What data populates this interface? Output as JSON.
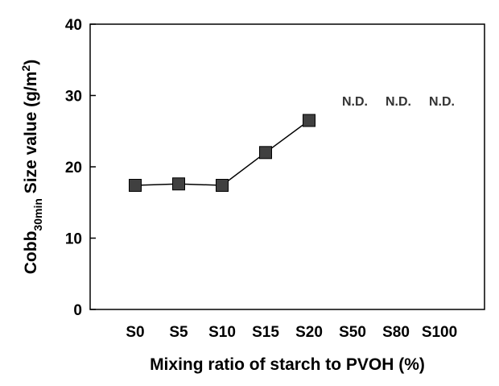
{
  "chart_data": {
    "type": "line",
    "categories": [
      "S0",
      "S5",
      "S10",
      "S15",
      "S20",
      "S50",
      "S80",
      "S100"
    ],
    "series": [
      {
        "values": [
          17.4,
          17.6,
          17.4,
          22.0,
          26.5,
          null,
          null,
          null
        ]
      }
    ],
    "annotations": [
      {
        "category": "S50",
        "text": "N.D."
      },
      {
        "category": "S80",
        "text": "N.D."
      },
      {
        "category": "S100",
        "text": "N.D."
      }
    ],
    "ylim": [
      0,
      40
    ],
    "yticks": [
      "0",
      "10",
      "20",
      "30",
      "40"
    ],
    "xlabel": "Mixing ratio of starch to PVOH (%)",
    "ylabel": {
      "main": "Cobb",
      "subscript": "30min",
      "rest": " Size value (g/m",
      "superscript": "2",
      "end": ")"
    },
    "grid": false,
    "marker": "square",
    "colors": {
      "marker_fill": "#404040",
      "line": "#000000"
    }
  }
}
